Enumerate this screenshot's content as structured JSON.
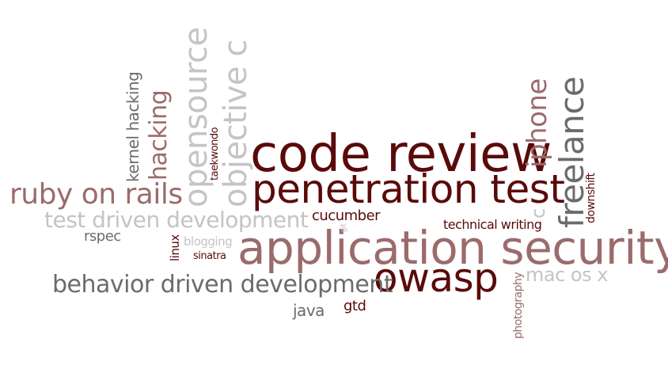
{
  "colors": {
    "dark_red": "#5a0a0a",
    "mauve": "#9b6b6b",
    "gray": "#6b6b6b",
    "light_gray": "#c4c4c4"
  },
  "words": {
    "code_review": "code review",
    "penetration_test": "penetration test",
    "application_security": "application security",
    "owasp": "owasp",
    "ruby_on_rails": "ruby on rails",
    "test_driven_development": "test driven development",
    "behavior_driven_development": "behavior driven development",
    "opensource": "opensource",
    "objective_c": "objective c",
    "hacking": "hacking",
    "kernel_hacking": "kernel hacking",
    "taekwondo": "taekwondo",
    "iphone": "iphone",
    "c": "c",
    "freelance": "freelance",
    "downshift": "downshift",
    "cucumber": "cucumber",
    "technical_writing": "technical writing",
    "git": "git",
    "rspec": "rspec",
    "linux": "linux",
    "blogging": "blogging",
    "sinatra": "sinatra",
    "java": "java",
    "gtd": "gtd",
    "photography": "photography",
    "mac_os_x": "mac os x"
  }
}
